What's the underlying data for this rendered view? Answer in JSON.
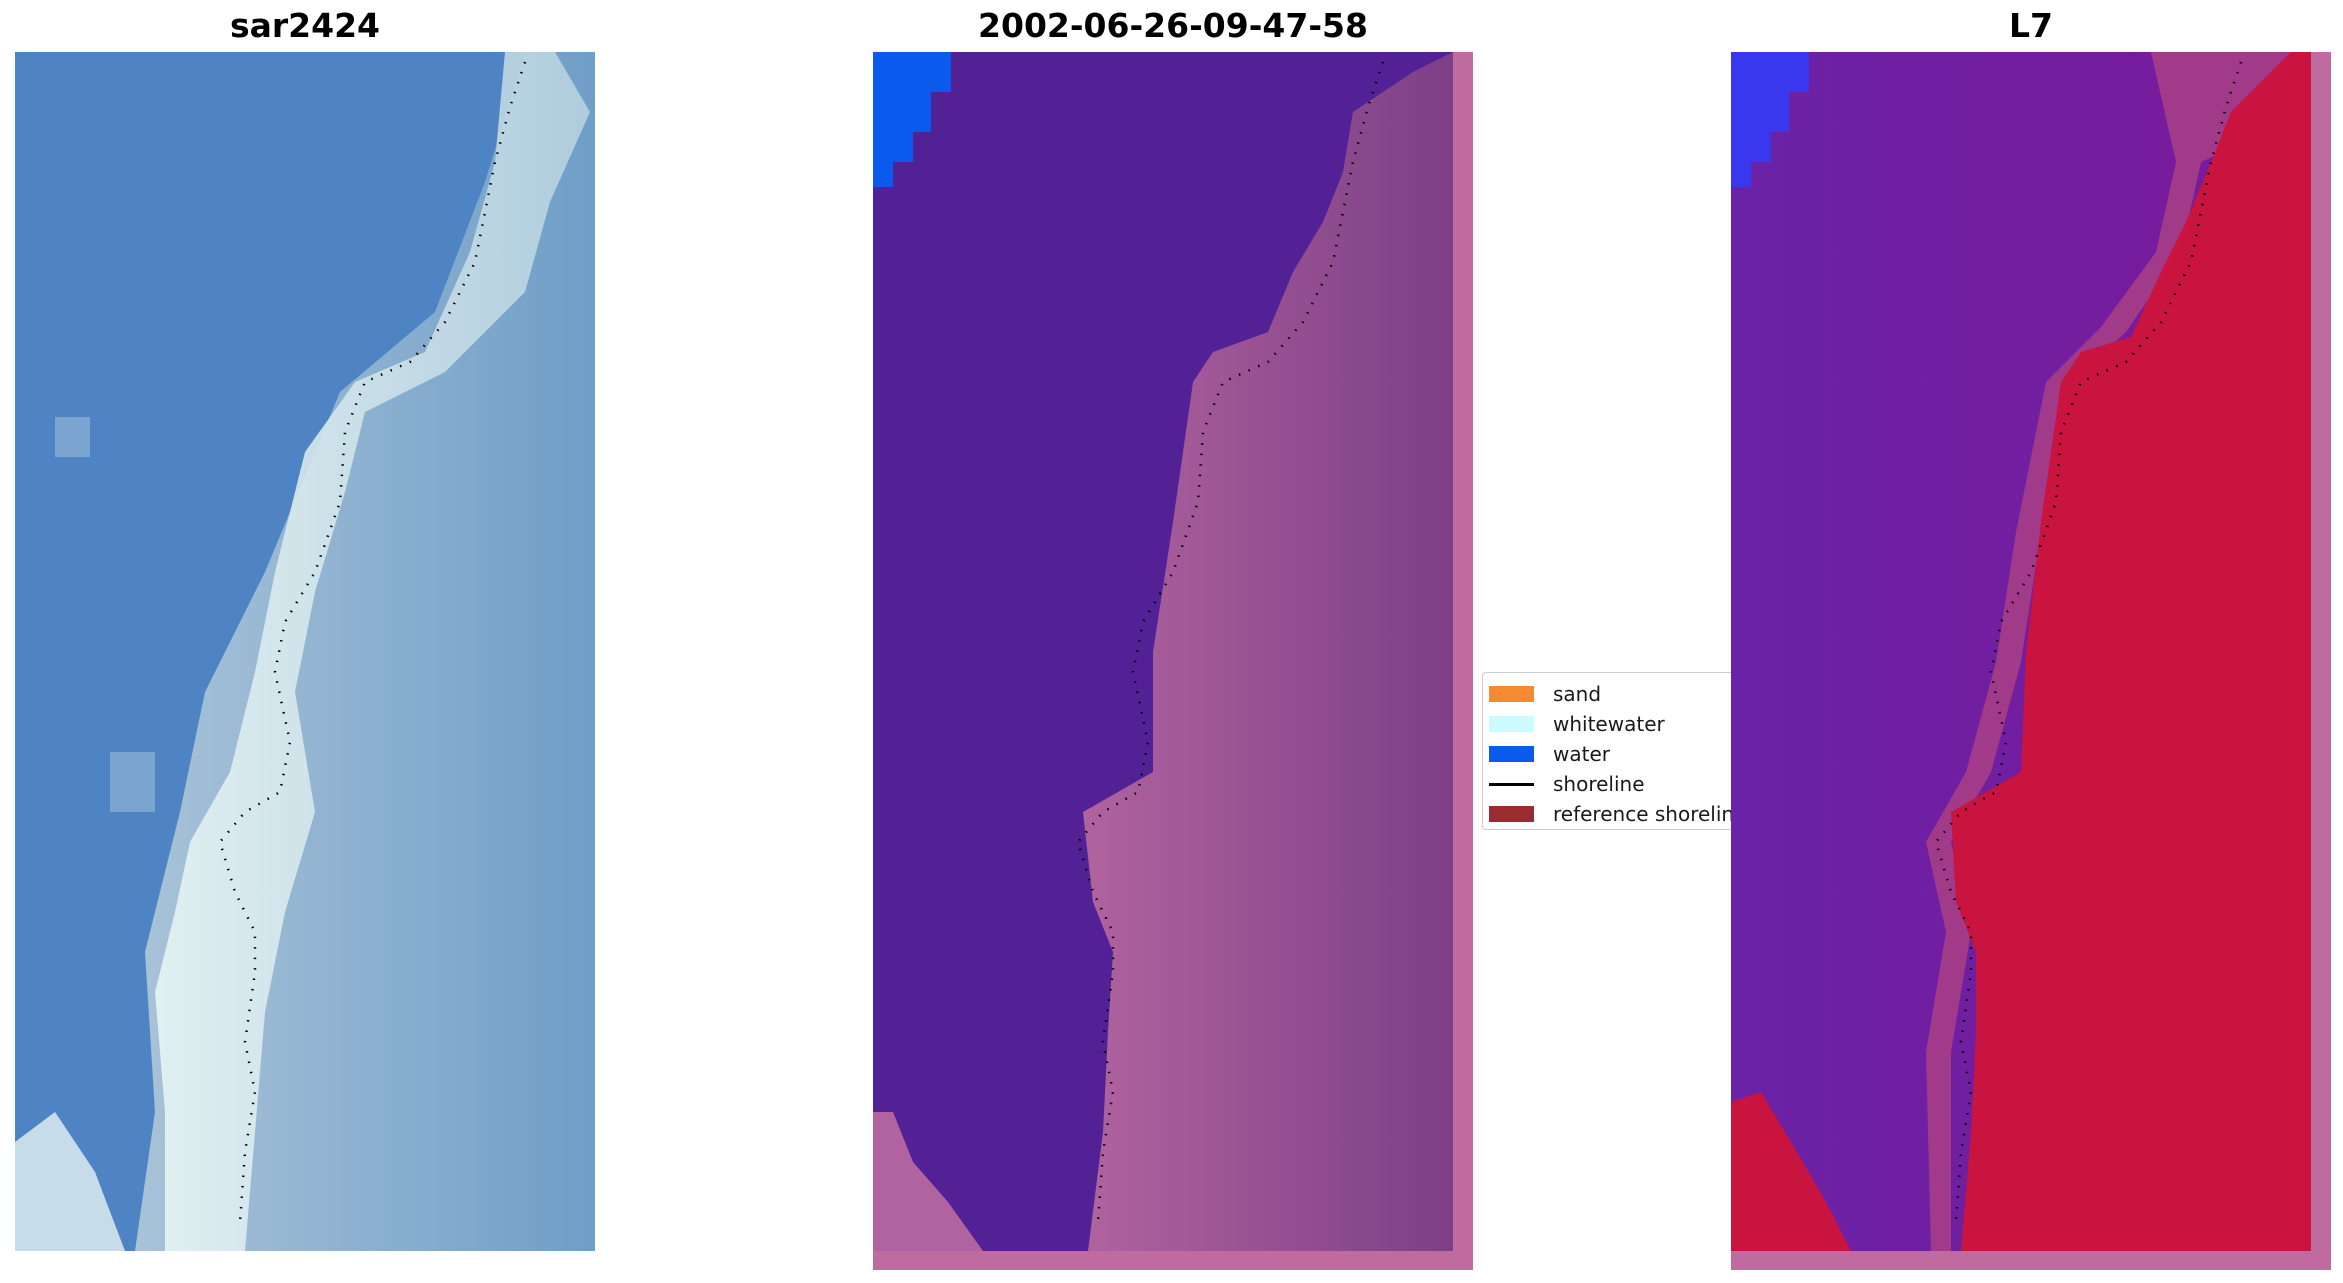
{
  "panels": [
    {
      "title": "sar2424"
    },
    {
      "title": "2002-06-26-09-47-58"
    },
    {
      "title": "L7"
    }
  ],
  "legend": {
    "items": [
      {
        "label": "sand",
        "color": "#f58a33"
      },
      {
        "label": "whitewater",
        "color": "#ccfbff"
      },
      {
        "label": "water",
        "color": "#0a5aee"
      },
      {
        "label": "shoreline",
        "color": "#000000"
      },
      {
        "label": "reference shoreline",
        "color": "#9b2b2e"
      }
    ]
  },
  "colors": {
    "rgb_water": "#4f84c4",
    "rgb_land": "#87a9c8",
    "rgb_foam": "#d6ecf0",
    "class_water": "#532196",
    "class_water_bright": "#0a5aee",
    "class_land": "#8a4b8e",
    "class_edge": "#c06ba0",
    "index_water": "#6e1ea1",
    "index_water_bright": "#3a38ee",
    "index_land": "#c8143e",
    "index_edge": "#c06ba0"
  }
}
